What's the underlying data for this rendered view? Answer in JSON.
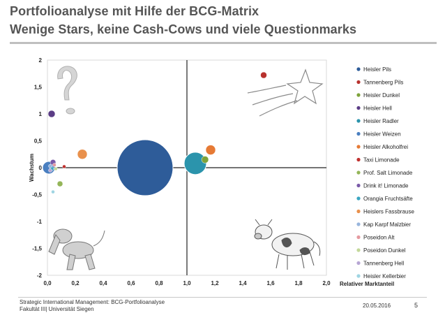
{
  "slide": {
    "title_line1": "Portfolioanalyse mit Hilfe der BCG-Matrix",
    "title_line2": "Wenige Stars, keine Cash-Cows und viele Questionmarks",
    "footer_line1": "Strategic International Management: BCG-Portfolioanalyse",
    "footer_line2": "Fakultät III| Universität Siegen",
    "date": "20.05.2016",
    "page_number": "5"
  },
  "chart_data": {
    "type": "scatter",
    "xlabel": "Relativer Marktanteil",
    "ylabel": "Wachstum",
    "xlim": [
      0,
      2
    ],
    "ylim": [
      -2,
      2
    ],
    "x_ticks": [
      "0,0",
      "0,2",
      "0,4",
      "0,6",
      "0,8",
      "1,0",
      "1,2",
      "1,4",
      "1,6",
      "1,8",
      "2,0"
    ],
    "y_ticks": [
      "2",
      "1,5",
      "1",
      "0,5",
      "0",
      "-0,5",
      "-1",
      "-1,5",
      "-2"
    ],
    "divider_x": 1.0,
    "divider_y": 0.0,
    "legend_position": "right",
    "series": [
      {
        "name": "Heisler Pils",
        "color": "#2e5c99",
        "x": 0.7,
        "y": 0.0,
        "size": 40
      },
      {
        "name": "Tannenberg Pils",
        "color": "#b8322e",
        "x": 1.55,
        "y": 1.72,
        "size": 4.5
      },
      {
        "name": "Heisler Dunkel",
        "color": "#7ea33a",
        "x": 1.13,
        "y": 0.15,
        "size": 5
      },
      {
        "name": "Heisler Hell",
        "color": "#5b3d86",
        "x": 0.03,
        "y": 1.0,
        "size": 5
      },
      {
        "name": "Heisler Radler",
        "color": "#2b94ac",
        "x": 1.06,
        "y": 0.08,
        "size": 16
      },
      {
        "name": "Heisler Weizen",
        "color": "#4a7fc0",
        "x": 0.01,
        "y": 0.0,
        "size": 9
      },
      {
        "name": "Heisler Alkoholfrei",
        "color": "#e67a35",
        "x": 1.17,
        "y": 0.33,
        "size": 7
      },
      {
        "name": "Taxi Limonade",
        "color": "#c0312f",
        "x": 0.12,
        "y": 0.02,
        "size": 2.5
      },
      {
        "name": "Prof. Salt Limonade",
        "color": "#94b558",
        "x": 0.09,
        "y": -0.3,
        "size": 4
      },
      {
        "name": "Drink it! Limonade",
        "color": "#7a5aa8",
        "x": 0.04,
        "y": 0.1,
        "size": 4
      },
      {
        "name": "Orangia Fruchtsäfte",
        "color": "#3aa6c2",
        "x": 0.03,
        "y": -0.02,
        "size": 3
      },
      {
        "name": "Heislers Fassbrause",
        "color": "#e9914c",
        "x": 0.25,
        "y": 0.25,
        "size": 7
      },
      {
        "name": "Kap Karpf Malzbier",
        "color": "#98b5dd",
        "x": 0.02,
        "y": 0.03,
        "size": 2.5
      },
      {
        "name": "Poseidon Alt",
        "color": "#e59aa0",
        "x": 0.05,
        "y": 0.05,
        "size": 2.5
      },
      {
        "name": "Poseidon Dunkel",
        "color": "#c3d89a",
        "x": 0.06,
        "y": -0.02,
        "size": 2.5
      },
      {
        "name": "Tannenberg Hell",
        "color": "#b7a6d4",
        "x": 0.02,
        "y": -0.05,
        "size": 2.5
      },
      {
        "name": "Heisler Kellerbier",
        "color": "#9fd5e3",
        "x": 0.04,
        "y": -0.45,
        "size": 2.5
      }
    ]
  }
}
